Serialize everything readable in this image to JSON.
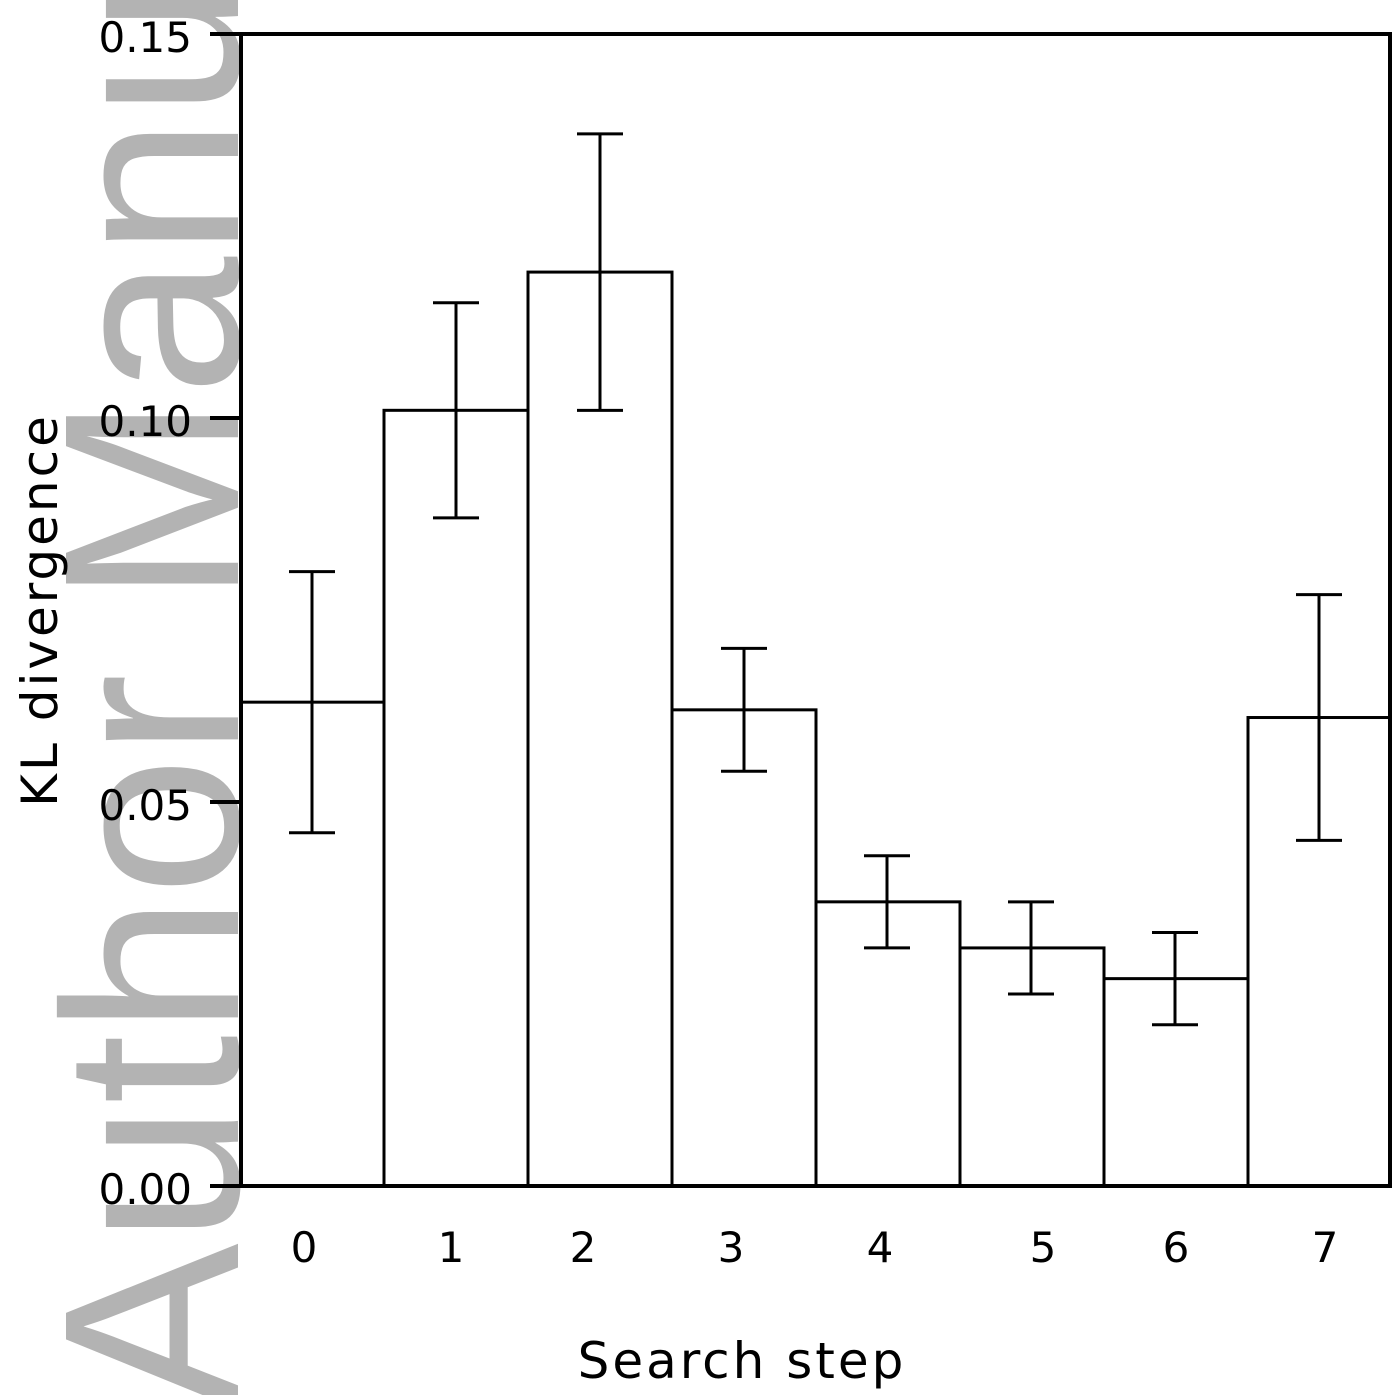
{
  "watermark": "Author Manuscript",
  "colors": {
    "bar_fill": "#ffffff",
    "stroke": "#000000",
    "watermark": "#b3b3b3"
  },
  "chart_data": {
    "type": "bar",
    "title": "",
    "xlabel": "Search step",
    "ylabel": "KL divergence",
    "categories": [
      "0",
      "1",
      "2",
      "3",
      "4",
      "5",
      "6",
      "7"
    ],
    "values": [
      0.063,
      0.101,
      0.119,
      0.062,
      0.037,
      0.031,
      0.027,
      0.061
    ],
    "errors": [
      0.017,
      0.014,
      0.018,
      0.008,
      0.006,
      0.006,
      0.006,
      0.016
    ],
    "ylim": [
      0,
      0.15
    ],
    "yticks": [
      "0.00",
      "0.05",
      "0.10",
      "0.15"
    ],
    "ytick_values": [
      0,
      0.05,
      0.1,
      0.15
    ],
    "grid": false,
    "legend": "none"
  }
}
